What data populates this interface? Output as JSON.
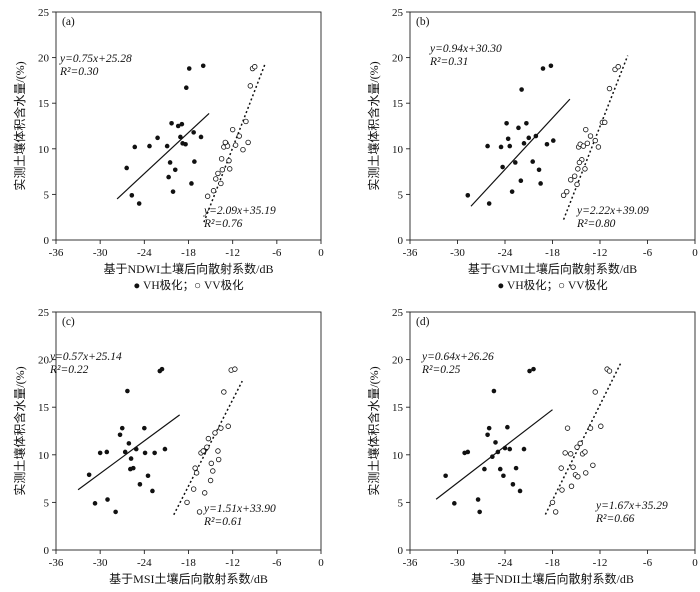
{
  "chart_data": [
    {
      "type": "scatter",
      "panel_label": "(a)",
      "xlabel": "基于NDWI土壤后向散射系数/dB",
      "ylabel": "实测土壤体积含水量/(%)",
      "xlim": [
        -36,
        0
      ],
      "ylim": [
        0,
        25
      ],
      "xticks": [
        "-36",
        "-30",
        "-24",
        "-18",
        "-12",
        "-6",
        "0"
      ],
      "yticks": [
        "0",
        "5",
        "10",
        "15",
        "20",
        "25"
      ],
      "legend": "● VH极化；○ VV极化",
      "series": [
        {
          "name": "VH极化",
          "marker": "filled",
          "points": [
            [
              -26.4,
              7.9
            ],
            [
              -25.7,
              4.9
            ],
            [
              -25.3,
              10.2
            ],
            [
              -24.7,
              4.0
            ],
            [
              -23.3,
              10.3
            ],
            [
              -22.2,
              11.2
            ],
            [
              -20.9,
              10.3
            ],
            [
              -20.7,
              6.9
            ],
            [
              -20.5,
              8.5
            ],
            [
              -20.3,
              12.8
            ],
            [
              -20.1,
              5.3
            ],
            [
              -19.8,
              7.7
            ],
            [
              -19.4,
              12.5
            ],
            [
              -19.1,
              11.3
            ],
            [
              -18.9,
              12.7
            ],
            [
              -18.8,
              10.6
            ],
            [
              -18.4,
              10.5
            ],
            [
              -18.3,
              16.7
            ],
            [
              -17.9,
              18.8
            ],
            [
              -17.6,
              6.2
            ],
            [
              -17.3,
              11.8
            ],
            [
              -17.2,
              8.6
            ],
            [
              -16.3,
              11.3
            ],
            [
              -16.0,
              19.1
            ]
          ],
          "fit": {
            "slope": 0.75,
            "intercept": 25.28,
            "x_range": [
              -27.7,
              -15.2
            ],
            "style": "solid"
          },
          "equation": "y=0.75x+25.28",
          "r2": "R²=0.30"
        },
        {
          "name": "VV极化",
          "marker": "open",
          "points": [
            [
              -15.4,
              4.8
            ],
            [
              -14.6,
              5.4
            ],
            [
              -14.3,
              6.7
            ],
            [
              -14.0,
              7.3
            ],
            [
              -13.6,
              6.2
            ],
            [
              -13.4,
              7.7
            ],
            [
              -13.2,
              10.2
            ],
            [
              -12.9,
              10.6
            ],
            [
              -12.7,
              10.3
            ],
            [
              -12.5,
              8.7
            ],
            [
              -12.4,
              7.8
            ],
            [
              -12.0,
              12.1
            ],
            [
              -11.6,
              10.4
            ],
            [
              -11.1,
              11.4
            ],
            [
              -10.6,
              9.9
            ],
            [
              -10.2,
              13.0
            ],
            [
              -9.9,
              10.7
            ],
            [
              -9.6,
              16.9
            ],
            [
              -9.3,
              18.8
            ],
            [
              -9.0,
              19.0
            ],
            [
              -13.5,
              8.9
            ],
            [
              -13.0,
              10.7
            ]
          ],
          "fit": {
            "slope": 2.09,
            "intercept": 35.19,
            "x_range": [
              -15.9,
              -7.6
            ],
            "style": "dotted"
          },
          "equation": "y=2.09x+35.19",
          "r2": "R²=0.76"
        }
      ]
    },
    {
      "type": "scatter",
      "panel_label": "(b)",
      "xlabel": "基于GVMI土壤后向散射系数/dB",
      "ylabel": "实测土壤体积含水量/(%)",
      "xlim": [
        -36,
        0
      ],
      "ylim": [
        0,
        25
      ],
      "xticks": [
        "-36",
        "-30",
        "-24",
        "-18",
        "-12",
        "-6",
        "0"
      ],
      "yticks": [
        "0",
        "5",
        "10",
        "15",
        "20",
        "25"
      ],
      "legend": "● VH极化；○ VV极化",
      "series": [
        {
          "name": "VH极化",
          "marker": "filled",
          "points": [
            [
              -28.7,
              4.9
            ],
            [
              -26.2,
              10.3
            ],
            [
              -26.0,
              4.0
            ],
            [
              -24.5,
              10.2
            ],
            [
              -24.3,
              8.0
            ],
            [
              -23.8,
              12.8
            ],
            [
              -23.4,
              10.3
            ],
            [
              -23.1,
              5.3
            ],
            [
              -22.7,
              8.5
            ],
            [
              -22.3,
              12.3
            ],
            [
              -22.0,
              6.5
            ],
            [
              -21.9,
              16.5
            ],
            [
              -21.6,
              10.6
            ],
            [
              -21.3,
              12.8
            ],
            [
              -21.0,
              11.2
            ],
            [
              -20.5,
              8.6
            ],
            [
              -20.1,
              11.4
            ],
            [
              -19.7,
              7.7
            ],
            [
              -19.5,
              6.2
            ],
            [
              -19.2,
              18.8
            ],
            [
              -18.7,
              10.5
            ],
            [
              -18.2,
              19.1
            ],
            [
              -17.9,
              10.9
            ],
            [
              -23.6,
              11.1
            ]
          ],
          "fit": {
            "slope": 0.94,
            "intercept": 30.3,
            "x_range": [
              -28.3,
              -15.8
            ],
            "style": "solid"
          },
          "equation": "y=0.94x+30.30",
          "r2": "R²=0.31"
        },
        {
          "name": "VV极化",
          "marker": "open",
          "points": [
            [
              -16.6,
              4.9
            ],
            [
              -16.2,
              5.3
            ],
            [
              -15.7,
              6.6
            ],
            [
              -15.2,
              7.0
            ],
            [
              -14.9,
              6.1
            ],
            [
              -14.8,
              7.8
            ],
            [
              -14.7,
              10.2
            ],
            [
              -14.5,
              10.5
            ],
            [
              -14.3,
              8.8
            ],
            [
              -14.1,
              10.3
            ],
            [
              -13.9,
              7.8
            ],
            [
              -13.8,
              12.1
            ],
            [
              -13.6,
              10.6
            ],
            [
              -13.2,
              11.4
            ],
            [
              -12.6,
              10.9
            ],
            [
              -12.2,
              10.2
            ],
            [
              -11.7,
              12.9
            ],
            [
              -11.4,
              12.9
            ],
            [
              -10.8,
              16.6
            ],
            [
              -10.1,
              18.7
            ],
            [
              -9.7,
              19.0
            ],
            [
              -14.6,
              8.5
            ]
          ],
          "fit": {
            "slope": 2.22,
            "intercept": 39.09,
            "x_range": [
              -16.6,
              -8.5
            ],
            "style": "dotted"
          },
          "equation": "y=2.22x+39.09",
          "r2": "R²=0.80"
        }
      ]
    },
    {
      "type": "scatter",
      "panel_label": "(c)",
      "xlabel": "基于MSI土壤后向散射系数/dB",
      "ylabel": "实测土壤体积含水量/(%)",
      "xlim": [
        -36,
        0
      ],
      "ylim": [
        0,
        25
      ],
      "xticks": [
        "-36",
        "-30",
        "-24",
        "-18",
        "-12",
        "-6",
        "0"
      ],
      "yticks": [
        "0",
        "5",
        "10",
        "15",
        "20",
        "25"
      ],
      "legend": "● VH极化；○ VV极化",
      "series": [
        {
          "name": "VH极化",
          "marker": "filled",
          "points": [
            [
              -31.5,
              7.9
            ],
            [
              -30.7,
              4.9
            ],
            [
              -30.0,
              10.2
            ],
            [
              -29.1,
              10.3
            ],
            [
              -29.0,
              5.3
            ],
            [
              -27.9,
              4.0
            ],
            [
              -27.3,
              12.1
            ],
            [
              -27.0,
              12.8
            ],
            [
              -26.6,
              10.3
            ],
            [
              -26.3,
              16.7
            ],
            [
              -26.1,
              11.2
            ],
            [
              -25.9,
              8.5
            ],
            [
              -25.5,
              8.6
            ],
            [
              -25.1,
              10.6
            ],
            [
              -24.6,
              6.9
            ],
            [
              -24.0,
              12.8
            ],
            [
              -23.5,
              7.8
            ],
            [
              -22.9,
              6.2
            ],
            [
              -22.6,
              10.2
            ],
            [
              -21.9,
              18.8
            ],
            [
              -21.6,
              19.0
            ],
            [
              -21.2,
              10.6
            ],
            [
              -23.9,
              10.2
            ],
            [
              -25.8,
              9.6
            ]
          ],
          "fit": {
            "slope": 0.57,
            "intercept": 25.14,
            "x_range": [
              -33.0,
              -19.2
            ],
            "style": "solid"
          },
          "equation": "y=0.57x+25.14",
          "r2": "R²=0.22"
        },
        {
          "name": "VV极化",
          "marker": "open",
          "points": [
            [
              -18.2,
              5.0
            ],
            [
              -17.3,
              6.4
            ],
            [
              -16.9,
              8.1
            ],
            [
              -16.5,
              4.0
            ],
            [
              -16.3,
              10.2
            ],
            [
              -15.9,
              10.4
            ],
            [
              -15.5,
              10.8
            ],
            [
              -15.3,
              11.7
            ],
            [
              -15.0,
              7.3
            ],
            [
              -14.7,
              8.3
            ],
            [
              -14.4,
              12.3
            ],
            [
              -14.0,
              10.4
            ],
            [
              -13.6,
              12.8
            ],
            [
              -13.2,
              16.6
            ],
            [
              -12.6,
              13.0
            ],
            [
              -12.2,
              18.9
            ],
            [
              -11.7,
              19.0
            ],
            [
              -16.0,
              10.4
            ],
            [
              -17.1,
              8.6
            ],
            [
              -14.9,
              9.1
            ],
            [
              -15.8,
              6.0
            ],
            [
              -13.9,
              9.5
            ]
          ],
          "fit": {
            "slope": 1.51,
            "intercept": 33.9,
            "x_range": [
              -20.0,
              -10.7
            ],
            "style": "dotted"
          },
          "equation": "y=1.51x+33.90",
          "r2": "R²=0.61"
        }
      ]
    },
    {
      "type": "scatter",
      "panel_label": "(d)",
      "xlabel": "基于NDII土壤后向散射系数/dB",
      "ylabel": "实测土壤体积含水量/(%)",
      "xlim": [
        -36,
        0
      ],
      "ylim": [
        0,
        25
      ],
      "xticks": [
        "-36",
        "-30",
        "-24",
        "-18",
        "-12",
        "-6",
        "0"
      ],
      "yticks": [
        "0",
        "5",
        "10",
        "15",
        "20",
        "25"
      ],
      "legend": "● VH极化；○ VV极化",
      "series": [
        {
          "name": "VH极化",
          "marker": "filled",
          "points": [
            [
              -31.5,
              7.8
            ],
            [
              -30.4,
              4.9
            ],
            [
              -29.1,
              10.2
            ],
            [
              -28.7,
              10.3
            ],
            [
              -27.4,
              5.3
            ],
            [
              -27.2,
              4.0
            ],
            [
              -26.6,
              8.5
            ],
            [
              -26.2,
              12.1
            ],
            [
              -26.0,
              12.8
            ],
            [
              -25.4,
              16.7
            ],
            [
              -25.2,
              11.3
            ],
            [
              -24.9,
              10.3
            ],
            [
              -24.6,
              8.5
            ],
            [
              -24.2,
              7.8
            ],
            [
              -23.7,
              12.9
            ],
            [
              -23.4,
              10.6
            ],
            [
              -23.0,
              6.9
            ],
            [
              -22.6,
              8.6
            ],
            [
              -22.1,
              6.2
            ],
            [
              -21.6,
              10.6
            ],
            [
              -20.9,
              18.8
            ],
            [
              -20.4,
              19.0
            ],
            [
              -24.0,
              10.7
            ],
            [
              -25.6,
              9.8
            ]
          ],
          "fit": {
            "slope": 0.64,
            "intercept": 26.26,
            "x_range": [
              -32.7,
              -18.0
            ],
            "style": "solid"
          },
          "equation": "y=0.64x+26.26",
          "r2": "R²=0.25"
        },
        {
          "name": "VV极化",
          "marker": "open",
          "points": [
            [
              -18.0,
              5.0
            ],
            [
              -17.6,
              4.0
            ],
            [
              -16.8,
              6.3
            ],
            [
              -16.4,
              10.2
            ],
            [
              -16.1,
              12.8
            ],
            [
              -15.7,
              10.1
            ],
            [
              -15.4,
              8.7
            ],
            [
              -15.1,
              7.9
            ],
            [
              -14.9,
              10.8
            ],
            [
              -14.5,
              11.2
            ],
            [
              -14.2,
              10.1
            ],
            [
              -13.8,
              8.1
            ],
            [
              -13.2,
              12.8
            ],
            [
              -12.6,
              16.6
            ],
            [
              -11.9,
              13.0
            ],
            [
              -11.1,
              19.0
            ],
            [
              -10.8,
              18.8
            ],
            [
              -16.9,
              8.6
            ],
            [
              -14.8,
              7.7
            ],
            [
              -15.6,
              6.7
            ],
            [
              -13.9,
              10.3
            ],
            [
              -12.9,
              8.9
            ]
          ],
          "fit": {
            "slope": 1.67,
            "intercept": 35.29,
            "x_range": [
              -18.9,
              -9.3
            ],
            "style": "dotted"
          },
          "equation": "y=1.67x+35.29",
          "r2": "R²=0.66"
        }
      ]
    }
  ]
}
